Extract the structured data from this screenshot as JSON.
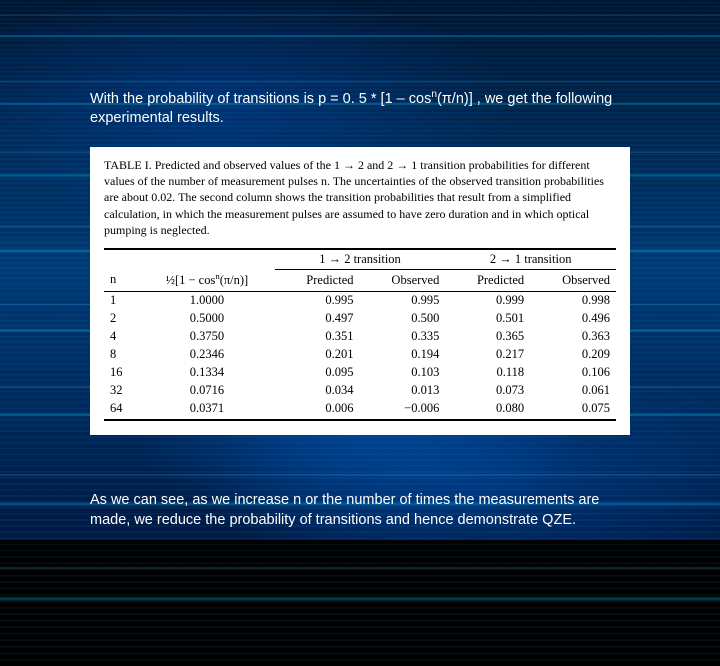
{
  "intro": {
    "pre": "With the probability of transitions is p = 0. 5 * [1 – cos",
    "sup": "n",
    "post": "(π/n)] , we get the following experimental results."
  },
  "caption": "TABLE I. Predicted and observed values of the 1 → 2 and 2 → 1 transition probabilities for different values of the number of measurement pulses n. The uncertainties of the observed transition probabilities are about 0.02. The second column shows the transition probabilities that result from a simplified calculation, in which the measurement pulses are assumed to have zero duration and in which optical pumping is neglected.",
  "headers": {
    "n": "n",
    "formula_pre": "½[1 − cos",
    "formula_sup": "n",
    "formula_post": "(π/n)]",
    "group12": "1 → 2 transition",
    "group21": "2 → 1 transition",
    "pred": "Predicted",
    "obs": "Observed"
  },
  "rows": [
    {
      "n": "1",
      "f": "1.0000",
      "p12": "0.995",
      "o12": "0.995",
      "p21": "0.999",
      "o21": "0.998"
    },
    {
      "n": "2",
      "f": "0.5000",
      "p12": "0.497",
      "o12": "0.500",
      "p21": "0.501",
      "o21": "0.496"
    },
    {
      "n": "4",
      "f": "0.3750",
      "p12": "0.351",
      "o12": "0.335",
      "p21": "0.365",
      "o21": "0.363"
    },
    {
      "n": "8",
      "f": "0.2346",
      "p12": "0.201",
      "o12": "0.194",
      "p21": "0.217",
      "o21": "0.209"
    },
    {
      "n": "16",
      "f": "0.1334",
      "p12": "0.095",
      "o12": "0.103",
      "p21": "0.118",
      "o21": "0.106"
    },
    {
      "n": "32",
      "f": "0.0716",
      "p12": "0.034",
      "o12": "0.013",
      "p21": "0.073",
      "o21": "0.061"
    },
    {
      "n": "64",
      "f": "0.0371",
      "p12": "0.006",
      "o12": "−0.006",
      "p21": "0.080",
      "o21": "0.075"
    }
  ],
  "outro": "As we can see, as we increase n or the number of times the measurements are made, we reduce the probability of transitions and hence demonstrate QZE.",
  "colors": {
    "text_white": "#ffffff",
    "panel_bg": "#ffffff",
    "panel_text": "#000000",
    "accent_blue": "#0078ff"
  },
  "typography": {
    "body_font": "Arial",
    "table_font": "Times New Roman",
    "body_size_pt": 11,
    "table_size_pt": 9,
    "caption_size_pt": 9
  }
}
